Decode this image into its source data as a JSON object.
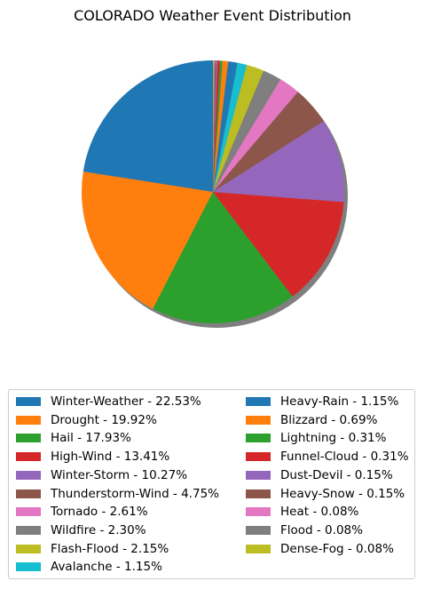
{
  "chart_data": {
    "type": "pie",
    "title": "COLORADO Weather Event Distribution",
    "shadow": true,
    "start_angle_deg": 90,
    "direction": "counterclockwise",
    "legend_placement": "bottom",
    "legend_columns": 2,
    "slices": [
      {
        "label": "Winter-Weather - 22.53%",
        "value": 22.53,
        "color": "#1f77b4"
      },
      {
        "label": "Drought - 19.92%",
        "value": 19.92,
        "color": "#ff7f0e"
      },
      {
        "label": "Hail - 17.93%",
        "value": 17.93,
        "color": "#2ca02c"
      },
      {
        "label": "High-Wind - 13.41%",
        "value": 13.41,
        "color": "#d62728"
      },
      {
        "label": "Winter-Storm - 10.27%",
        "value": 10.27,
        "color": "#9467bd"
      },
      {
        "label": "Thunderstorm-Wind - 4.75%",
        "value": 4.75,
        "color": "#8c564b"
      },
      {
        "label": "Tornado - 2.61%",
        "value": 2.61,
        "color": "#e377c2"
      },
      {
        "label": "Wildfire - 2.30%",
        "value": 2.3,
        "color": "#7f7f7f"
      },
      {
        "label": "Flash-Flood - 2.15%",
        "value": 2.15,
        "color": "#bcbd22"
      },
      {
        "label": "Avalanche - 1.15%",
        "value": 1.15,
        "color": "#17becf"
      },
      {
        "label": "Heavy-Rain - 1.15%",
        "value": 1.15,
        "color": "#1f77b4"
      },
      {
        "label": "Blizzard - 0.69%",
        "value": 0.69,
        "color": "#ff7f0e"
      },
      {
        "label": "Lightning - 0.31%",
        "value": 0.31,
        "color": "#2ca02c"
      },
      {
        "label": "Funnel-Cloud - 0.31%",
        "value": 0.31,
        "color": "#d62728"
      },
      {
        "label": "Dust-Devil - 0.15%",
        "value": 0.15,
        "color": "#9467bd"
      },
      {
        "label": "Heavy-Snow - 0.15%",
        "value": 0.15,
        "color": "#8c564b"
      },
      {
        "label": "Heat - 0.08%",
        "value": 0.08,
        "color": "#e377c2"
      },
      {
        "label": "Flood - 0.08%",
        "value": 0.08,
        "color": "#7f7f7f"
      },
      {
        "label": "Dense-Fog - 0.08%",
        "value": 0.08,
        "color": "#bcbd22"
      }
    ]
  }
}
